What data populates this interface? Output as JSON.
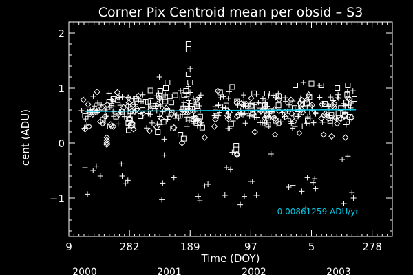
{
  "chart_data": {
    "type": "scatter",
    "title": "Corner Pix Centroid mean per obsid – S3",
    "xlabel": "Time (DOY)",
    "ylabel": "cent (ADU)",
    "ylim": [
      -1.7,
      2.2
    ],
    "grid": false,
    "x_ticks": [
      {
        "label": "9",
        "year": 2000.0
      },
      {
        "label": "282",
        "year": 2000.75
      },
      {
        "label": "189",
        "year": 2001.5
      },
      {
        "label": "97",
        "year": 2002.25
      },
      {
        "label": "5",
        "year": 2003.0
      },
      {
        "label": "278",
        "year": 2003.75
      }
    ],
    "x_year_labels": [
      "2000",
      "2001",
      "2002",
      "2003"
    ],
    "y_ticks": [
      -1,
      0,
      1,
      2
    ],
    "fit": {
      "color": "#00c8e6",
      "x": [
        2000.2,
        2003.55
      ],
      "y": [
        0.575,
        0.605
      ],
      "slope_label": "0.00861259 ADU/yr"
    },
    "band": {
      "x_start": 2000.15,
      "x_end": 2003.55,
      "center": 0.6,
      "halfwidth": 0.28,
      "count": 420
    },
    "series": [
      {
        "marker": "plus",
        "color": "#ffffff",
        "points": [
          [
            2000.2,
            -0.45
          ],
          [
            2000.23,
            -0.93
          ],
          [
            2000.3,
            -0.5
          ],
          [
            2000.34,
            -0.42
          ],
          [
            2000.39,
            -0.6
          ],
          [
            2000.65,
            -0.38
          ],
          [
            2000.66,
            -0.6
          ],
          [
            2000.7,
            -0.74
          ],
          [
            2000.73,
            -0.68
          ],
          [
            2001.12,
            1.2
          ],
          [
            2001.15,
            -1.03
          ],
          [
            2001.16,
            -0.73
          ],
          [
            2001.18,
            -0.22
          ],
          [
            2001.18,
            0.07
          ],
          [
            2001.3,
            -0.63
          ],
          [
            2001.38,
            0.95
          ],
          [
            2001.46,
            0.3
          ],
          [
            2001.48,
            1.03
          ],
          [
            2001.5,
            1.35
          ],
          [
            2001.55,
            0.35
          ],
          [
            2001.6,
            -0.97
          ],
          [
            2001.62,
            -1.05
          ],
          [
            2001.68,
            -0.78
          ],
          [
            2001.72,
            -0.75
          ],
          [
            2001.93,
            -0.95
          ],
          [
            2001.95,
            -0.45
          ],
          [
            2002.0,
            -0.48
          ],
          [
            2002.02,
            -0.17
          ],
          [
            2002.12,
            -1.12
          ],
          [
            2002.17,
            -0.97
          ],
          [
            2002.25,
            -0.7
          ],
          [
            2002.27,
            -0.7
          ],
          [
            2002.32,
            -0.95
          ],
          [
            2002.5,
            -0.2
          ],
          [
            2002.72,
            -0.8
          ],
          [
            2002.77,
            -0.77
          ],
          [
            2002.88,
            -0.88
          ],
          [
            2002.93,
            -1.18
          ],
          [
            2002.95,
            -0.63
          ],
          [
            2003.02,
            -0.72
          ],
          [
            2003.04,
            -0.65
          ],
          [
            2003.05,
            -0.83
          ],
          [
            2003.38,
            -0.3
          ],
          [
            2003.4,
            -1.1
          ],
          [
            2003.45,
            -0.24
          ],
          [
            2003.5,
            -0.9
          ],
          [
            2003.52,
            -1.0
          ],
          [
            2002.9,
            1.1
          ],
          [
            2003.1,
            1.05
          ]
        ]
      },
      {
        "marker": "square",
        "color": "#ffffff",
        "points": [
          [
            2001.48,
            1.8
          ],
          [
            2001.48,
            1.7
          ],
          [
            2001.48,
            1.25
          ],
          [
            2001.5,
            1.1
          ],
          [
            2001.45,
            0.95
          ],
          [
            2001.13,
            0.95
          ],
          [
            2001.2,
            1.0
          ],
          [
            2001.22,
            1.1
          ],
          [
            2001.87,
            0.92
          ],
          [
            2002.02,
            1.02
          ],
          [
            2001.35,
            0.5
          ],
          [
            2001.38,
            0.15
          ],
          [
            2001.65,
            0.28
          ],
          [
            2002.07,
            -0.05
          ],
          [
            2002.07,
            -0.12
          ],
          [
            2002.8,
            1.05
          ],
          [
            2003.0,
            1.08
          ],
          [
            2003.12,
            1.05
          ],
          [
            2003.32,
            1.0
          ],
          [
            2003.45,
            1.05
          ],
          [
            2000.5,
            0.75
          ],
          [
            2000.95,
            0.75
          ],
          [
            2001.1,
            0.2
          ],
          [
            2001.42,
            0.08
          ],
          [
            2002.45,
            0.9
          ]
        ]
      },
      {
        "marker": "diamond",
        "color": "#ffffff",
        "points": [
          [
            2000.47,
            0.1
          ],
          [
            2000.47,
            0.05
          ],
          [
            2000.47,
            0.0
          ],
          [
            2000.47,
            -0.03
          ],
          [
            2000.2,
            0.25
          ],
          [
            2000.25,
            0.3
          ],
          [
            2000.42,
            0.35
          ],
          [
            2000.55,
            0.3
          ],
          [
            2000.8,
            0.25
          ],
          [
            2001.0,
            0.22
          ],
          [
            2001.4,
            0.0
          ],
          [
            2001.68,
            0.1
          ],
          [
            2002.08,
            -0.2
          ],
          [
            2002.08,
            -0.22
          ],
          [
            2002.3,
            0.2
          ],
          [
            2002.55,
            0.15
          ],
          [
            2002.85,
            0.18
          ],
          [
            2003.15,
            0.15
          ],
          [
            2003.25,
            0.12
          ],
          [
            2003.42,
            0.1
          ],
          [
            2000.35,
            0.93
          ],
          [
            2000.6,
            0.92
          ],
          [
            2001.3,
            0.28
          ],
          [
            2001.8,
            0.3
          ],
          [
            2002.6,
            0.35
          ]
        ]
      }
    ]
  }
}
